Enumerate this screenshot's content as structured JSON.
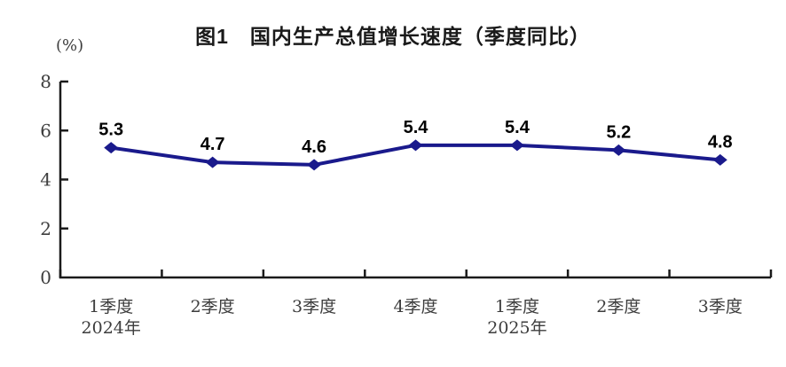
{
  "chart_data": {
    "type": "line",
    "title": "图1　国内生产总值增长速度（季度同比）",
    "unit_label": "(%)",
    "categories": [
      {
        "label": "1季度",
        "year": "2024年"
      },
      {
        "label": "2季度"
      },
      {
        "label": "3季度"
      },
      {
        "label": "4季度"
      },
      {
        "label": "1季度",
        "year": "2025年"
      },
      {
        "label": "2季度"
      },
      {
        "label": "3季度"
      }
    ],
    "values": [
      5.3,
      4.7,
      4.6,
      5.4,
      5.4,
      5.2,
      4.8
    ],
    "ylim": [
      0,
      8
    ],
    "y_ticks": [
      0,
      2,
      4,
      6,
      8
    ],
    "xlabel": "",
    "ylabel": "(%)",
    "grid": "off",
    "legend": "none",
    "marker": "diamond",
    "line_color": "#1a1a8c",
    "axis_color": "#1a1a1a",
    "data_label_color": "#000000",
    "tick_label_color": "#3d3d3d"
  }
}
